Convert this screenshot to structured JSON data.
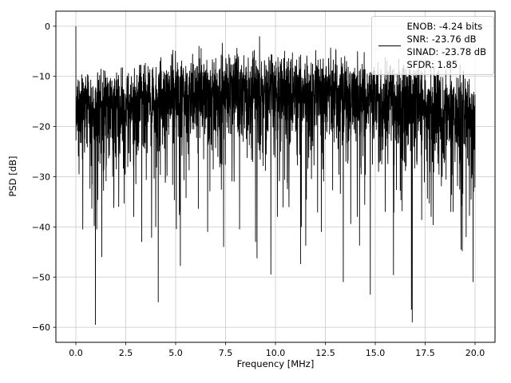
{
  "style": {
    "background": "#ffffff",
    "trace_color": "#000000",
    "grid_color": "#c8c8c8",
    "axis_color": "#000000",
    "legend_border": "#cccccc"
  },
  "chart_data": {
    "type": "line",
    "title": "",
    "xlabel": "Frequency [MHz]",
    "ylabel": "PSD [dB]",
    "xlim": [
      -1,
      21
    ],
    "ylim": [
      -63,
      3
    ],
    "grid": true,
    "legend_position": "upper right",
    "legend_entries": [
      "ENOB: -4.24 bits",
      "SNR: -23.76 dB",
      "SINAD: -23.78 dB",
      "SFDR: 1.85"
    ],
    "xticks": [
      0,
      2.5,
      5,
      7.5,
      10,
      12.5,
      15,
      17.5,
      20
    ],
    "xtick_labels": [
      "0.0",
      "2.5",
      "5.0",
      "7.5",
      "10.0",
      "12.5",
      "15.0",
      "17.5",
      "20.0"
    ],
    "yticks": [
      0,
      -10,
      -20,
      -30,
      -40,
      -50,
      -60
    ],
    "ytick_labels": [
      "0",
      "−10",
      "−20",
      "−30",
      "−40",
      "−50",
      "−60"
    ],
    "series": [
      {
        "name": "PSD",
        "color": "#000000",
        "description": "Dense FFT noise power spectrum 0-20 MHz; DC spike reaching 0 dB at f=0; noise mass mostly between -28 and -8 dB with a mild hump toward mid-band; sparse deep nulls down to -59 dB",
        "summary": {
          "dc_peak_db": 0,
          "noise_top_db": -6,
          "noise_median_db": -17,
          "min_db": -59
        },
        "synthesis": {
          "seed": 1337,
          "n_points": 3000,
          "f_start": 0,
          "f_end": 20,
          "offset_db": -16,
          "hump_db": 4,
          "deep_null_prob": 0.012,
          "floor_db": -59.5
        },
        "peaks": [
          {
            "f": 0.0,
            "db": 0.0
          },
          {
            "f": 0.07,
            "db": -12.0
          },
          {
            "f": 9.2,
            "db": -2.0
          }
        ],
        "deep_nulls": [
          {
            "f": 0.35,
            "db": -40.5
          },
          {
            "f": 1.05,
            "db": -40.5
          },
          {
            "f": 1.3,
            "db": -46.0
          },
          {
            "f": 2.15,
            "db": -36.0
          },
          {
            "f": 2.9,
            "db": -38.0
          },
          {
            "f": 3.3,
            "db": -43.0
          },
          {
            "f": 4.0,
            "db": -40.0
          },
          {
            "f": 5.2,
            "db": -37.0
          },
          {
            "f": 6.6,
            "db": -41.0
          },
          {
            "f": 7.4,
            "db": -44.0
          },
          {
            "f": 8.2,
            "db": -40.5
          },
          {
            "f": 9.0,
            "db": -43.0
          },
          {
            "f": 10.1,
            "db": -38.0
          },
          {
            "f": 11.3,
            "db": -40.0
          },
          {
            "f": 12.3,
            "db": -41.0
          },
          {
            "f": 13.4,
            "db": -51.0
          },
          {
            "f": 14.1,
            "db": -38.0
          },
          {
            "f": 14.75,
            "db": -53.5
          },
          {
            "f": 15.5,
            "db": -37.0
          },
          {
            "f": 16.85,
            "db": -59.0
          },
          {
            "f": 17.8,
            "db": -38.0
          },
          {
            "f": 18.9,
            "db": -37.0
          },
          {
            "f": 19.55,
            "db": -42.0
          },
          {
            "f": 19.9,
            "db": -51.0
          }
        ]
      }
    ]
  }
}
